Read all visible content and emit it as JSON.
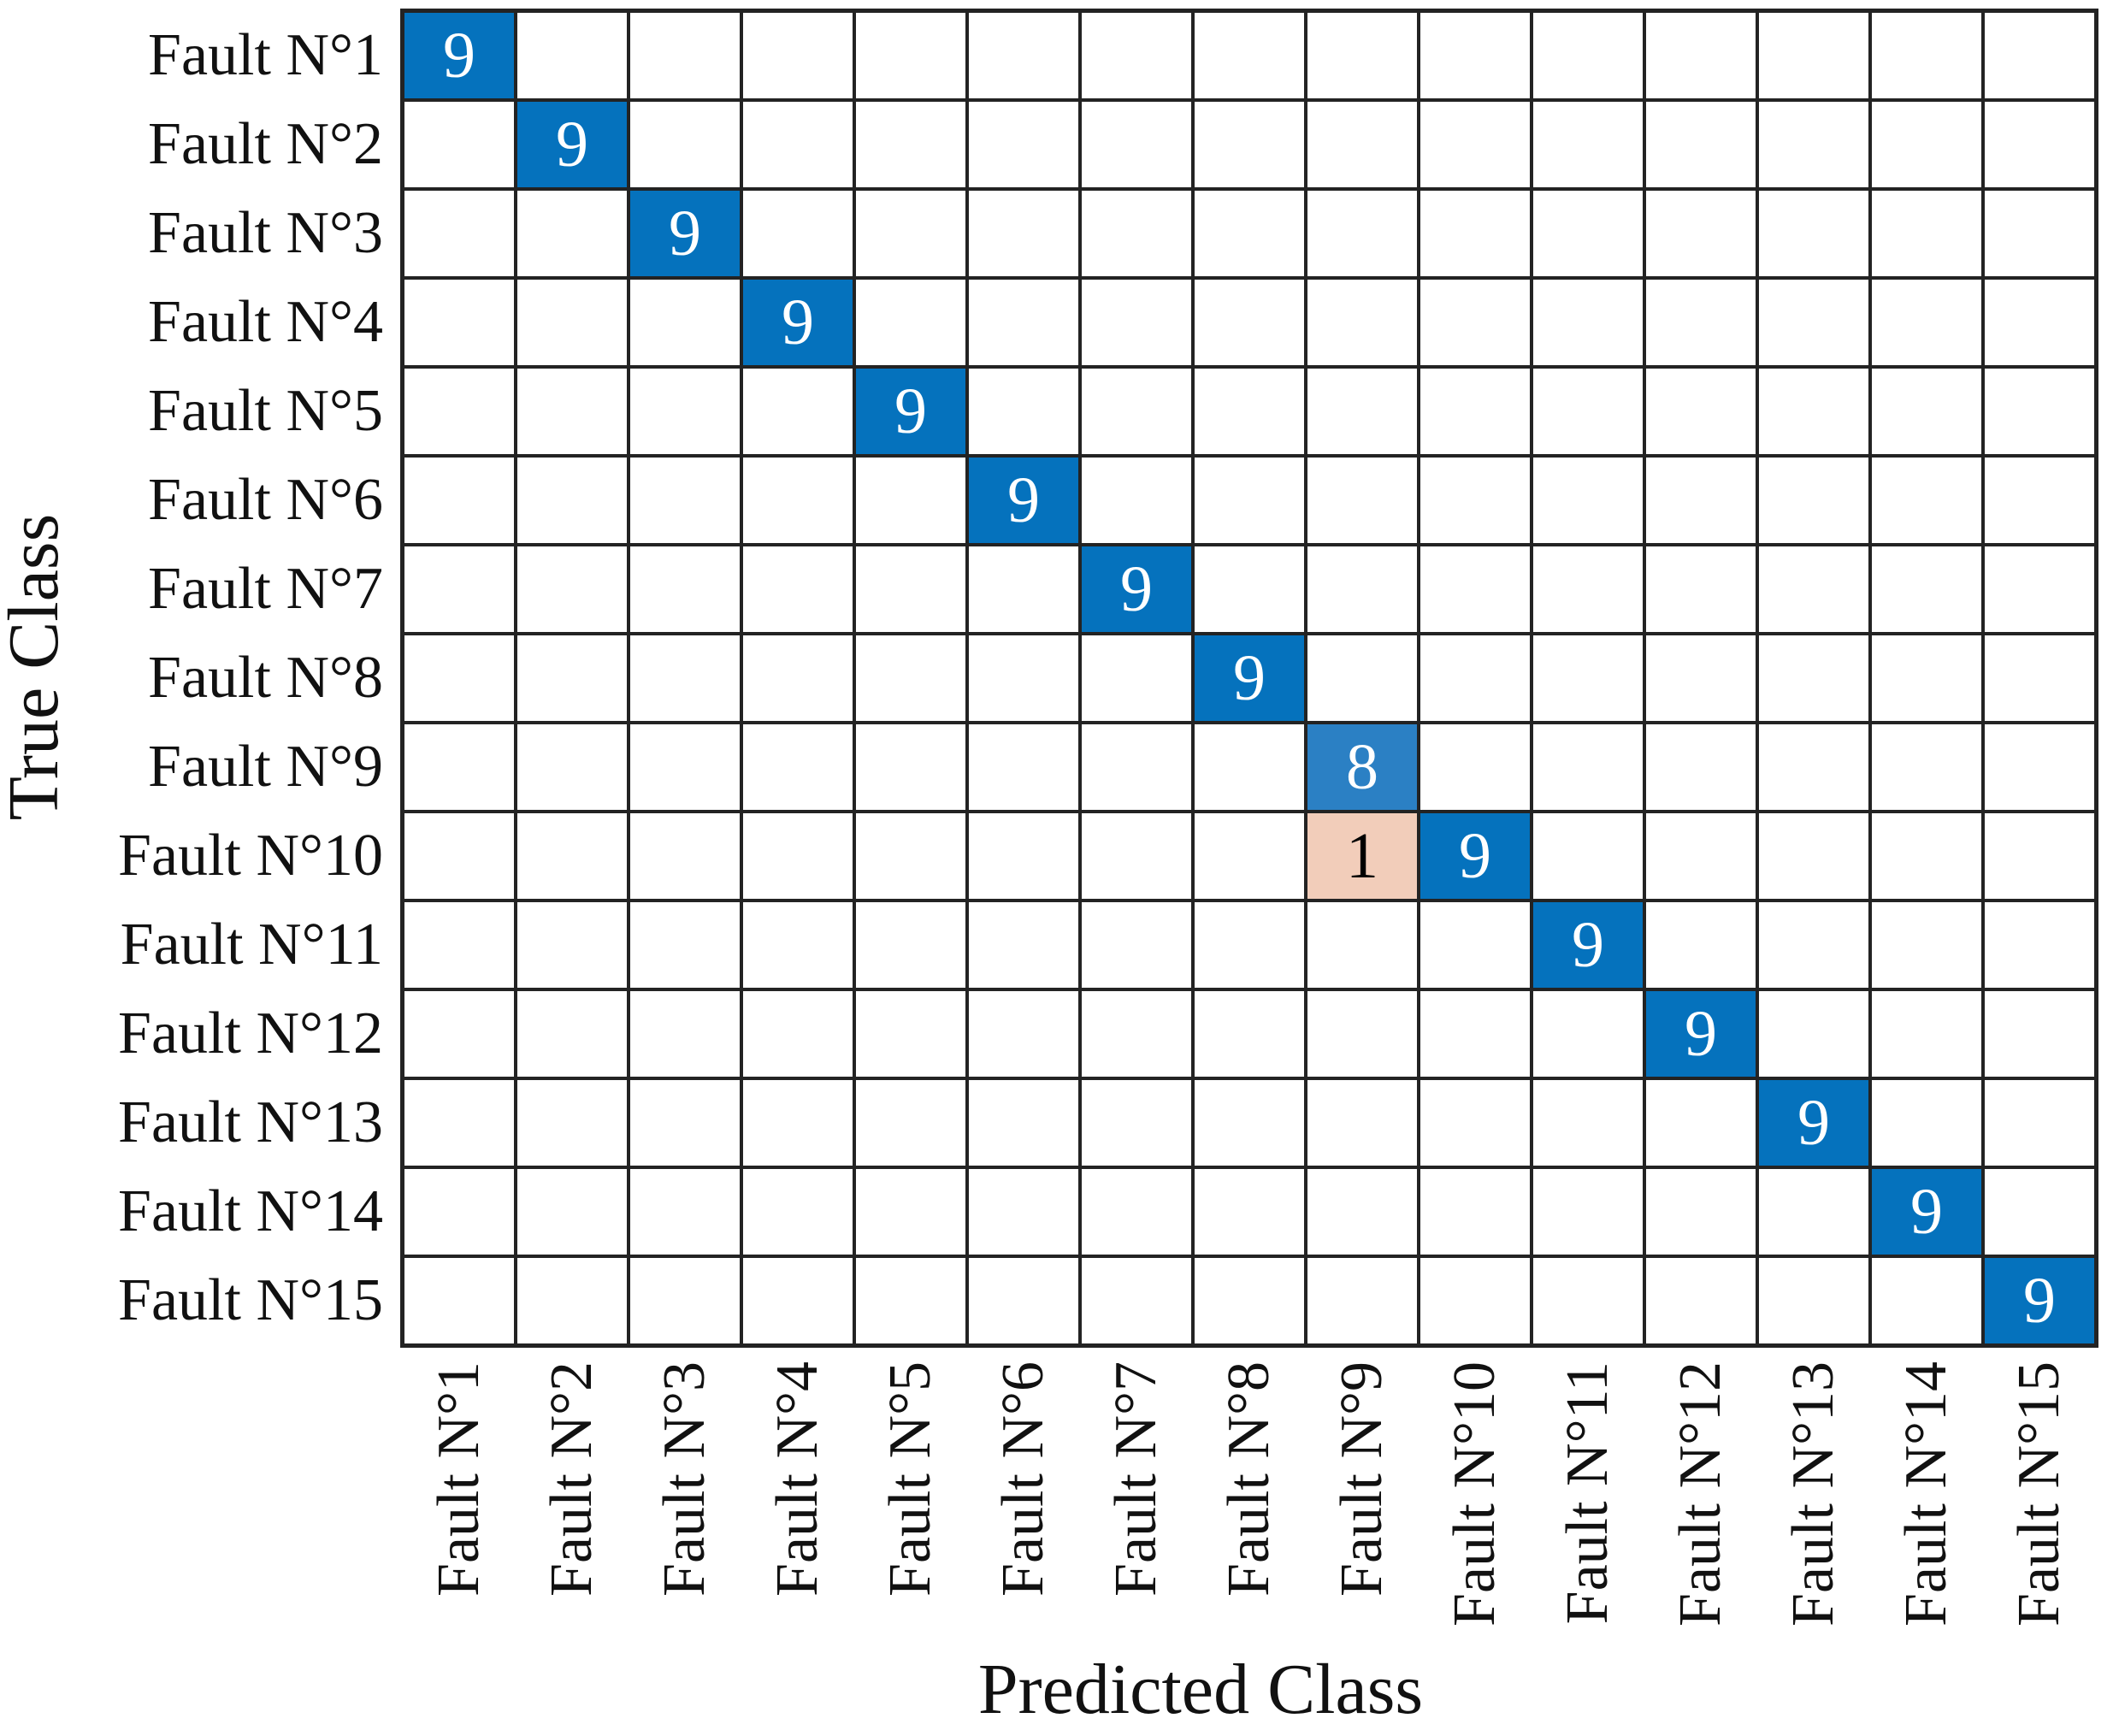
{
  "figure": {
    "xlabel": "Predicted Class",
    "ylabel": "True Class"
  },
  "chart_data": {
    "type": "heatmap",
    "subtype": "confusion-matrix",
    "xlabel": "Predicted Class",
    "ylabel": "True Class",
    "classes": [
      "Fault N°1",
      "Fault N°2",
      "Fault N°3",
      "Fault N°4",
      "Fault N°5",
      "Fault N°6",
      "Fault N°7",
      "Fault N°8",
      "Fault N°9",
      "Fault N°10",
      "Fault N°11",
      "Fault N°12",
      "Fault N°13",
      "Fault N°14",
      "Fault N°15"
    ],
    "matrix": [
      [
        9,
        0,
        0,
        0,
        0,
        0,
        0,
        0,
        0,
        0,
        0,
        0,
        0,
        0,
        0
      ],
      [
        0,
        9,
        0,
        0,
        0,
        0,
        0,
        0,
        0,
        0,
        0,
        0,
        0,
        0,
        0
      ],
      [
        0,
        0,
        9,
        0,
        0,
        0,
        0,
        0,
        0,
        0,
        0,
        0,
        0,
        0,
        0
      ],
      [
        0,
        0,
        0,
        9,
        0,
        0,
        0,
        0,
        0,
        0,
        0,
        0,
        0,
        0,
        0
      ],
      [
        0,
        0,
        0,
        0,
        9,
        0,
        0,
        0,
        0,
        0,
        0,
        0,
        0,
        0,
        0
      ],
      [
        0,
        0,
        0,
        0,
        0,
        9,
        0,
        0,
        0,
        0,
        0,
        0,
        0,
        0,
        0
      ],
      [
        0,
        0,
        0,
        0,
        0,
        0,
        9,
        0,
        0,
        0,
        0,
        0,
        0,
        0,
        0
      ],
      [
        0,
        0,
        0,
        0,
        0,
        0,
        0,
        9,
        0,
        0,
        0,
        0,
        0,
        0,
        0
      ],
      [
        0,
        0,
        0,
        0,
        0,
        0,
        0,
        0,
        8,
        0,
        0,
        0,
        0,
        0,
        0
      ],
      [
        0,
        0,
        0,
        0,
        0,
        0,
        0,
        0,
        1,
        9,
        0,
        0,
        0,
        0,
        0
      ],
      [
        0,
        0,
        0,
        0,
        0,
        0,
        0,
        0,
        0,
        0,
        9,
        0,
        0,
        0,
        0
      ],
      [
        0,
        0,
        0,
        0,
        0,
        0,
        0,
        0,
        0,
        0,
        0,
        9,
        0,
        0,
        0
      ],
      [
        0,
        0,
        0,
        0,
        0,
        0,
        0,
        0,
        0,
        0,
        0,
        0,
        9,
        0,
        0
      ],
      [
        0,
        0,
        0,
        0,
        0,
        0,
        0,
        0,
        0,
        0,
        0,
        0,
        0,
        9,
        0
      ],
      [
        0,
        0,
        0,
        0,
        0,
        0,
        0,
        0,
        0,
        0,
        0,
        0,
        0,
        0,
        9
      ]
    ],
    "zero_display": "blank",
    "value_styles": {
      "9": {
        "bg": "#0572bd",
        "text": "#ffffff"
      },
      "8": {
        "bg": "#2b80c4",
        "text": "#ffffff"
      },
      "1": {
        "bg": "#f2cdba",
        "text": "#000000"
      }
    },
    "colors": {
      "grid_line": "#232323",
      "empty_cell": "#ffffff",
      "label_text": "#111111"
    },
    "legend": "none",
    "axis_tick_rotation_x_deg": 90
  }
}
